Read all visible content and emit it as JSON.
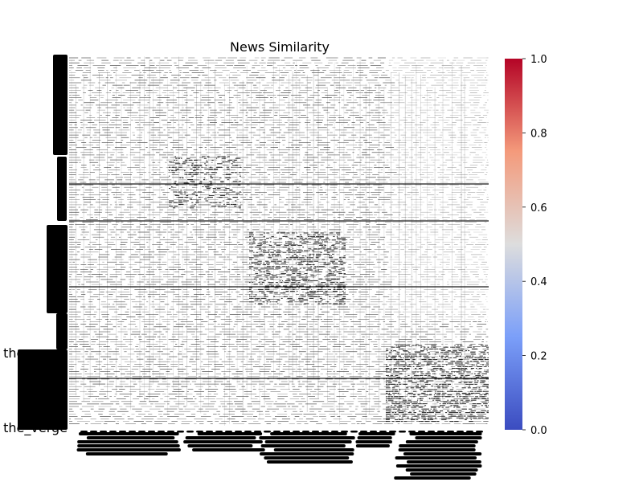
{
  "chart_data": {
    "type": "heatmap",
    "title": "News Similarity",
    "xlabel": "",
    "ylabel": "",
    "colormap": "coolwarm",
    "value_range": [
      0,
      1
    ],
    "colorbar": {
      "ticks": [
        0.0,
        0.2,
        0.4,
        0.6,
        0.8,
        1.0
      ],
      "tick_labels": [
        "0.0",
        "0.2",
        "0.4",
        "0.6",
        "0.8",
        "1.0"
      ],
      "colors": {
        "low": "#3b4cc0",
        "mid": "#dddddd",
        "high": "#b40426"
      }
    },
    "visible_row_labels": [
      "the_verge",
      "the_verge"
    ],
    "cell_description": "Dense matrix of mostly near-zero similarity values; cells render white with black gridlines; dense darker regions in upper-middle and lower-right blocks.",
    "grid": true
  }
}
